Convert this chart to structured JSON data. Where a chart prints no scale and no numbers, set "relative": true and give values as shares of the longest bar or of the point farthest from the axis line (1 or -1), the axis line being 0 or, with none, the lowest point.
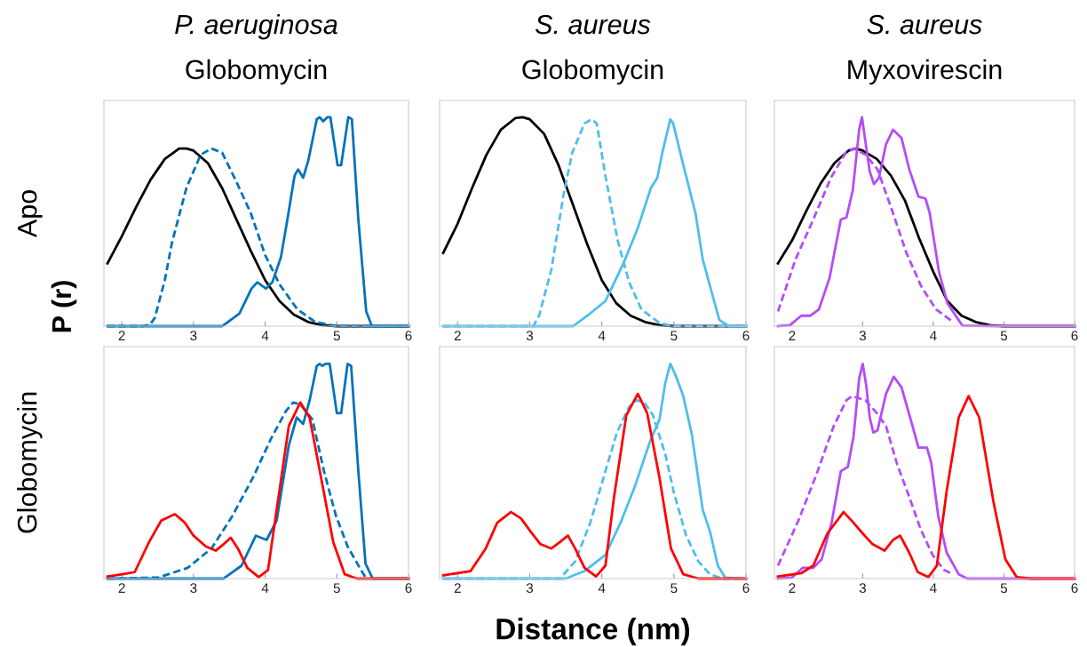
{
  "chart_data": [
    {
      "type": "line",
      "title": "P. aeruginosa",
      "subtitle": "Globomycin",
      "ylabel": "Apo",
      "annotations": [
        "P (r)"
      ],
      "relative": true,
      "xlim": [
        1.75,
        6.0
      ],
      "xticks": [
        2,
        3,
        4,
        5,
        6
      ],
      "tick_labels": "x",
      "series": [
        {
          "color": "#000000",
          "line_style": "solid",
          "x": [
            1.8,
            2.0,
            2.2,
            2.4,
            2.6,
            2.8,
            2.9,
            3.0,
            3.2,
            3.4,
            3.6,
            3.8,
            4.0,
            4.2,
            4.4,
            4.6,
            4.8,
            5.0,
            6.0
          ],
          "values": [
            0.3,
            0.43,
            0.57,
            0.7,
            0.8,
            0.85,
            0.85,
            0.84,
            0.78,
            0.66,
            0.51,
            0.36,
            0.22,
            0.12,
            0.055,
            0.02,
            0.005,
            0,
            0
          ]
        },
        {
          "color": "#0072bd",
          "line_style": "dashed",
          "x": [
            1.8,
            2.3,
            2.4,
            2.46,
            2.6,
            2.7,
            2.9,
            3.1,
            3.25,
            3.4,
            3.6,
            3.8,
            4.0,
            4.2,
            4.45,
            4.7,
            5.0,
            6.0
          ],
          "values": [
            0,
            0,
            0.01,
            0.04,
            0.22,
            0.4,
            0.66,
            0.82,
            0.85,
            0.83,
            0.69,
            0.54,
            0.34,
            0.2,
            0.08,
            0.02,
            0,
            0
          ]
        },
        {
          "color": "#0072bd",
          "line_style": "solid",
          "x": [
            1.8,
            3.4,
            3.64,
            3.81,
            3.89,
            4.01,
            4.1,
            4.22,
            4.31,
            4.41,
            4.46,
            4.53,
            4.6,
            4.72,
            4.76,
            4.81,
            4.87,
            4.91,
            5.01,
            5.06,
            5.16,
            5.21,
            5.3,
            5.41,
            5.49,
            6.0
          ],
          "values": [
            0,
            0,
            0.06,
            0.18,
            0.21,
            0.18,
            0.21,
            0.33,
            0.51,
            0.72,
            0.75,
            0.71,
            0.79,
            0.99,
            1.0,
            0.98,
            1.0,
            1.0,
            0.77,
            0.77,
            1.0,
            0.99,
            0.51,
            0.07,
            0,
            0
          ]
        }
      ]
    },
    {
      "type": "line",
      "title": "S. aureus",
      "subtitle": "Globomycin",
      "relative": true,
      "xlim": [
        1.75,
        6.0
      ],
      "xticks": [
        2,
        3,
        4,
        5,
        6
      ],
      "tick_labels": "x",
      "series": [
        {
          "color": "#000000",
          "line_style": "solid",
          "x": [
            1.8,
            2.0,
            2.2,
            2.4,
            2.6,
            2.8,
            2.9,
            3.0,
            3.2,
            3.4,
            3.6,
            3.8,
            4.0,
            4.2,
            4.4,
            4.6,
            4.8,
            5.0,
            6.0
          ],
          "values": [
            0.35,
            0.49,
            0.66,
            0.82,
            0.94,
            0.995,
            1.0,
            0.99,
            0.92,
            0.77,
            0.58,
            0.39,
            0.22,
            0.11,
            0.05,
            0.02,
            0.005,
            0,
            0
          ]
        },
        {
          "color": "#4dbeee",
          "line_style": "dashed",
          "x": [
            1.8,
            3.05,
            3.13,
            3.3,
            3.47,
            3.59,
            3.76,
            3.86,
            3.93,
            4.05,
            4.22,
            4.38,
            4.55,
            4.8,
            5.0,
            6.0
          ],
          "values": [
            0,
            0,
            0.05,
            0.27,
            0.63,
            0.83,
            0.97,
            0.99,
            0.97,
            0.72,
            0.41,
            0.21,
            0.08,
            0.015,
            0,
            0
          ]
        },
        {
          "color": "#4dbeee",
          "line_style": "solid",
          "x": [
            1.8,
            3.6,
            3.8,
            4.05,
            4.3,
            4.5,
            4.68,
            4.77,
            4.84,
            4.95,
            4.99,
            5.11,
            5.3,
            5.4,
            5.51,
            5.63,
            5.76,
            6.0
          ],
          "values": [
            0,
            0,
            0.05,
            0.12,
            0.3,
            0.47,
            0.66,
            0.71,
            0.83,
            0.99,
            0.97,
            0.8,
            0.54,
            0.32,
            0.18,
            0.03,
            0,
            0
          ]
        }
      ]
    },
    {
      "type": "line",
      "title": "S. aureus",
      "subtitle": "Myxovirescin",
      "relative": true,
      "xlim": [
        1.75,
        6.0
      ],
      "xticks": [
        2,
        3,
        4,
        5,
        6
      ],
      "tick_labels": "x",
      "series": [
        {
          "color": "#000000",
          "line_style": "solid",
          "x": [
            1.8,
            2.0,
            2.2,
            2.4,
            2.6,
            2.8,
            2.9,
            3.0,
            3.2,
            3.4,
            3.6,
            3.8,
            4.0,
            4.2,
            4.4,
            4.6,
            4.8,
            5.0,
            6.0
          ],
          "values": [
            0.3,
            0.41,
            0.55,
            0.68,
            0.78,
            0.84,
            0.85,
            0.84,
            0.8,
            0.72,
            0.6,
            0.42,
            0.26,
            0.12,
            0.05,
            0.02,
            0.005,
            0,
            0
          ]
        },
        {
          "color": "#b44cf7",
          "line_style": "dashed",
          "x": [
            1.8,
            2.05,
            2.3,
            2.55,
            2.76,
            2.88,
            3.04,
            3.21,
            3.41,
            3.62,
            3.83,
            4.04,
            4.28
          ],
          "values": [
            0.07,
            0.32,
            0.51,
            0.71,
            0.83,
            0.85,
            0.82,
            0.75,
            0.56,
            0.35,
            0.19,
            0.08,
            0.02
          ]
        },
        {
          "color": "#b44cf7",
          "line_style": "solid",
          "x": [
            1.8,
            1.97,
            2.13,
            2.26,
            2.38,
            2.53,
            2.69,
            2.77,
            2.86,
            2.95,
            2.99,
            3.04,
            3.1,
            3.16,
            3.23,
            3.33,
            3.43,
            3.55,
            3.66,
            3.79,
            3.89,
            3.95,
            4.08,
            4.2,
            4.41,
            5.0,
            6.0
          ],
          "values": [
            0,
            0.005,
            0.05,
            0.05,
            0.08,
            0.23,
            0.51,
            0.52,
            0.65,
            0.94,
            1.0,
            0.88,
            0.74,
            0.68,
            0.71,
            0.87,
            0.94,
            0.9,
            0.75,
            0.62,
            0.61,
            0.54,
            0.26,
            0.11,
            0.003,
            0,
            0
          ]
        }
      ]
    },
    {
      "type": "line",
      "ylabel": "Globomycin",
      "relative": true,
      "xlim": [
        1.75,
        6.0
      ],
      "xticks": [
        2,
        3,
        4,
        5,
        6
      ],
      "tick_labels": "x",
      "series": [
        {
          "color": "#0072bd",
          "line_style": "solid",
          "x": [
            1.8,
            3.42,
            3.67,
            3.87,
            4.02,
            4.16,
            4.33,
            4.44,
            4.53,
            4.62,
            4.72,
            4.76,
            4.8,
            4.84,
            4.9,
            5.0,
            5.06,
            5.15,
            5.2,
            5.3,
            5.4,
            5.5,
            6.0
          ],
          "values": [
            0,
            0,
            0.06,
            0.2,
            0.18,
            0.27,
            0.62,
            0.75,
            0.72,
            0.83,
            0.99,
            1.0,
            0.99,
            1.0,
            1.0,
            0.77,
            0.77,
            1.0,
            0.99,
            0.5,
            0.07,
            0,
            0
          ]
        },
        {
          "color": "#0072bd",
          "line_style": "dashed",
          "x": [
            1.8,
            2.51,
            2.92,
            3.25,
            3.54,
            3.83,
            4.08,
            4.29,
            4.39,
            4.49,
            4.66,
            4.82,
            4.99,
            5.15,
            5.32,
            5.4
          ],
          "values": [
            0,
            0.005,
            0.05,
            0.14,
            0.29,
            0.47,
            0.65,
            0.78,
            0.82,
            0.81,
            0.74,
            0.5,
            0.29,
            0.15,
            0.05,
            0.005
          ]
        },
        {
          "color": "#ff0000",
          "line_style": "solid",
          "x": [
            1.8,
            2.01,
            2.18,
            2.38,
            2.55,
            2.74,
            2.88,
            3.0,
            3.17,
            3.31,
            3.42,
            3.52,
            3.62,
            3.75,
            3.91,
            4.04,
            4.16,
            4.33,
            4.49,
            4.62,
            4.78,
            4.95,
            5.11,
            5.28,
            6.0
          ],
          "values": [
            0.01,
            0.02,
            0.03,
            0.17,
            0.27,
            0.3,
            0.26,
            0.2,
            0.15,
            0.13,
            0.16,
            0.19,
            0.14,
            0.05,
            0.007,
            0.04,
            0.32,
            0.71,
            0.82,
            0.75,
            0.47,
            0.17,
            0.02,
            0,
            0
          ]
        }
      ]
    },
    {
      "type": "line",
      "xlabel": "Distance (nm)",
      "relative": true,
      "xlim": [
        1.75,
        6.0
      ],
      "xticks": [
        2,
        3,
        4,
        5,
        6
      ],
      "tick_labels": "x",
      "series": [
        {
          "color": "#4dbeee",
          "line_style": "solid",
          "x": [
            1.8,
            3.5,
            3.76,
            4.05,
            4.26,
            4.46,
            4.67,
            4.8,
            4.88,
            4.95,
            5.02,
            5.13,
            5.25,
            5.4,
            5.5,
            5.61,
            5.71,
            6.0
          ],
          "values": [
            0,
            0,
            0.035,
            0.11,
            0.26,
            0.43,
            0.64,
            0.74,
            0.91,
            1.0,
            0.95,
            0.85,
            0.67,
            0.32,
            0.22,
            0.06,
            0.005,
            0
          ]
        },
        {
          "color": "#4dbeee",
          "line_style": "dashed",
          "x": [
            1.8,
            3.42,
            3.63,
            3.84,
            4.05,
            4.21,
            4.38,
            4.48,
            4.59,
            4.71,
            4.88,
            5.0,
            5.17,
            5.34,
            5.5,
            5.67,
            6.0
          ],
          "values": [
            0,
            0,
            0.08,
            0.26,
            0.5,
            0.68,
            0.8,
            0.83,
            0.82,
            0.76,
            0.58,
            0.4,
            0.2,
            0.08,
            0.02,
            0,
            0
          ]
        },
        {
          "color": "#ff0000",
          "line_style": "solid",
          "x": [
            1.8,
            2.18,
            2.39,
            2.55,
            2.74,
            2.88,
            3.01,
            3.15,
            3.3,
            3.42,
            3.53,
            3.63,
            3.76,
            3.92,
            4.05,
            4.17,
            4.34,
            4.5,
            4.63,
            4.8,
            4.96,
            5.13,
            5.34,
            6.0
          ],
          "values": [
            0.015,
            0.035,
            0.14,
            0.26,
            0.31,
            0.28,
            0.22,
            0.16,
            0.14,
            0.17,
            0.2,
            0.14,
            0.05,
            0.01,
            0.06,
            0.38,
            0.76,
            0.86,
            0.77,
            0.47,
            0.14,
            0.02,
            0,
            0
          ]
        }
      ]
    },
    {
      "type": "line",
      "relative": true,
      "xlim": [
        1.75,
        6.0
      ],
      "xticks": [
        2,
        3,
        4,
        5,
        6
      ],
      "tick_labels": "x",
      "series": [
        {
          "color": "#b44cf7",
          "line_style": "solid",
          "x": [
            1.8,
            2.0,
            2.15,
            2.3,
            2.42,
            2.56,
            2.69,
            2.79,
            2.87,
            2.95,
            3.0,
            3.05,
            3.1,
            3.15,
            3.21,
            3.33,
            3.44,
            3.55,
            3.68,
            3.79,
            3.91,
            3.97,
            4.07,
            4.19,
            4.36,
            4.48,
            6.0
          ],
          "values": [
            0,
            0.005,
            0.05,
            0.05,
            0.09,
            0.26,
            0.5,
            0.52,
            0.66,
            0.93,
            1.0,
            0.9,
            0.75,
            0.68,
            0.69,
            0.86,
            0.94,
            0.89,
            0.74,
            0.61,
            0.61,
            0.54,
            0.29,
            0.12,
            0.02,
            0,
            0
          ]
        },
        {
          "color": "#b44cf7",
          "line_style": "dashed",
          "x": [
            1.8,
            2.09,
            2.34,
            2.59,
            2.77,
            2.85,
            3.04,
            3.2,
            3.33,
            3.49,
            3.66,
            3.82,
            3.99,
            4.15,
            4.28
          ],
          "values": [
            0.06,
            0.27,
            0.48,
            0.71,
            0.83,
            0.85,
            0.83,
            0.77,
            0.71,
            0.53,
            0.38,
            0.23,
            0.11,
            0.04,
            0.02
          ]
        },
        {
          "color": "#ff0000",
          "line_style": "solid",
          "x": [
            1.8,
            2.13,
            2.3,
            2.5,
            2.73,
            2.87,
            3.0,
            3.14,
            3.31,
            3.43,
            3.53,
            3.66,
            3.78,
            3.93,
            4.05,
            4.19,
            4.36,
            4.5,
            4.65,
            4.85,
            5.02,
            5.18,
            5.39,
            6.0
          ],
          "values": [
            0.01,
            0.025,
            0.06,
            0.21,
            0.31,
            0.26,
            0.21,
            0.16,
            0.13,
            0.18,
            0.2,
            0.12,
            0.03,
            0.007,
            0.06,
            0.41,
            0.75,
            0.85,
            0.75,
            0.36,
            0.09,
            0.007,
            0,
            0
          ]
        }
      ]
    }
  ]
}
